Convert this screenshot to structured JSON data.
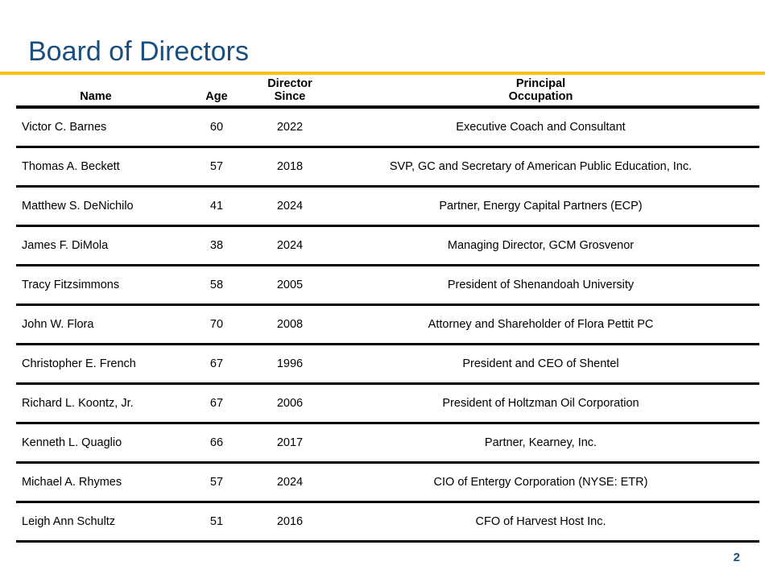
{
  "slide": {
    "title": "Board of Directors",
    "page_number": "2",
    "colors": {
      "title_blue": "#1A4E7E",
      "rule_gold": "#FFC011",
      "table_line_black": "#000000",
      "page_number_blue": "#1B4E79"
    }
  },
  "table": {
    "columns": [
      {
        "key": "name",
        "line1": "",
        "line2": "Name"
      },
      {
        "key": "age",
        "line1": "",
        "line2": "Age"
      },
      {
        "key": "since",
        "line1": "Director",
        "line2": "Since"
      },
      {
        "key": "occupation",
        "line1": "Principal",
        "line2": "Occupation"
      }
    ],
    "rows": [
      {
        "name": "Victor C. Barnes",
        "age": "60",
        "since": "2022",
        "occupation": "Executive Coach and Consultant"
      },
      {
        "name": "Thomas A. Beckett",
        "age": "57",
        "since": "2018",
        "occupation": "SVP, GC and Secretary of American Public Education, Inc."
      },
      {
        "name": "Matthew S. DeNichilo",
        "age": "41",
        "since": "2024",
        "occupation": "Partner, Energy Capital Partners (ECP)"
      },
      {
        "name": "James F. DiMola",
        "age": "38",
        "since": "2024",
        "occupation": "Managing Director, GCM Grosvenor"
      },
      {
        "name": "Tracy Fitzsimmons",
        "age": "58",
        "since": "2005",
        "occupation": "President of Shenandoah University"
      },
      {
        "name": "John W. Flora",
        "age": "70",
        "since": "2008",
        "occupation": "Attorney and Shareholder of Flora Pettit PC"
      },
      {
        "name": "Christopher E. French",
        "age": "67",
        "since": "1996",
        "occupation": "President and CEO of Shentel"
      },
      {
        "name": "Richard L. Koontz, Jr.",
        "age": "67",
        "since": "2006",
        "occupation": "President of Holtzman Oil Corporation"
      },
      {
        "name": "Kenneth L. Quaglio",
        "age": "66",
        "since": "2017",
        "occupation": "Partner, Kearney, Inc."
      },
      {
        "name": "Michael A. Rhymes",
        "age": "57",
        "since": "2024",
        "occupation": "CIO of Entergy Corporation (NYSE: ETR)"
      },
      {
        "name": "Leigh Ann Schultz",
        "age": "51",
        "since": "2016",
        "occupation": "CFO of Harvest Host Inc."
      }
    ]
  }
}
